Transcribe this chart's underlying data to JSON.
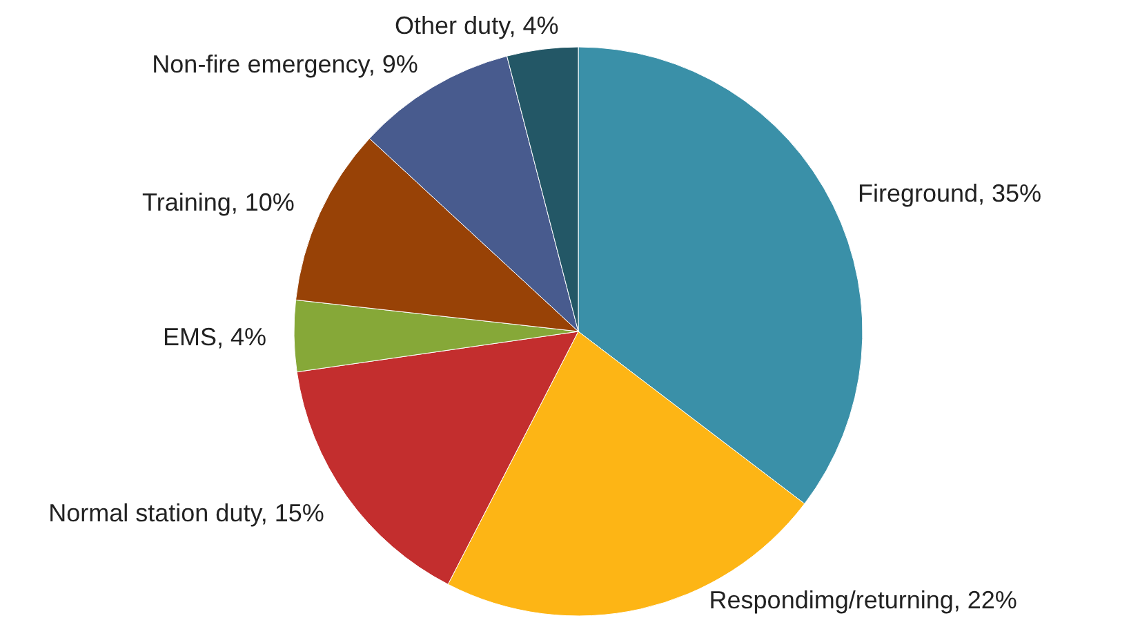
{
  "chart_data": {
    "type": "pie",
    "categories": [
      "Fireground",
      "Respondimg/returning",
      "Normal station duty",
      "EMS",
      "Training",
      "Non-fire emergency",
      "Other duty"
    ],
    "values": [
      35,
      22,
      15,
      4,
      10,
      9,
      4
    ],
    "value_labels": [
      "35%",
      "22%",
      "15%",
      "4%",
      "10%",
      "9%",
      "4%"
    ],
    "colors": [
      "#3a90a8",
      "#fdb515",
      "#c32e2e",
      "#86a838",
      "#984206",
      "#485b8e",
      "#235766"
    ],
    "legend": false
  }
}
